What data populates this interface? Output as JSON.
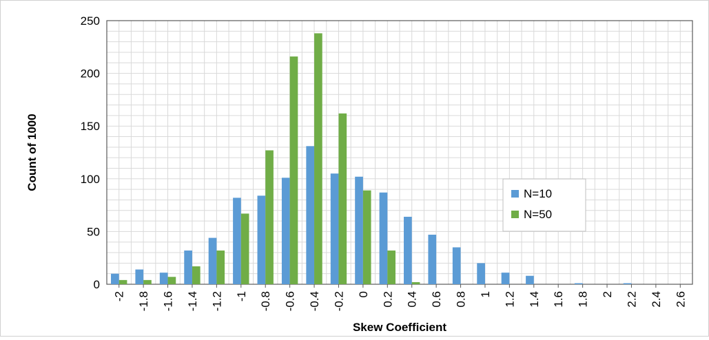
{
  "chart_data": {
    "type": "bar",
    "title": "",
    "xlabel": "Skew Coefficient",
    "ylabel": "Count of 1000",
    "ylim": [
      0,
      250
    ],
    "yticks": [
      0,
      50,
      100,
      150,
      200,
      250
    ],
    "categories": [
      "-2",
      "-1.8",
      "-1.6",
      "-1.4",
      "-1.2",
      "-1",
      "-0.8",
      "-0.6",
      "-0.4",
      "-0.2",
      "0",
      "0.2",
      "0.4",
      "0.6",
      "0.8",
      "1",
      "1.2",
      "1.4",
      "1.6",
      "1.8",
      "2",
      "2.2",
      "2.4",
      "2.6"
    ],
    "series": [
      {
        "name": "N=10",
        "color": "#5b9bd5",
        "values": [
          10,
          14,
          11,
          32,
          44,
          82,
          84,
          101,
          131,
          105,
          102,
          87,
          64,
          47,
          35,
          20,
          11,
          8,
          0,
          1,
          0,
          1,
          0,
          0
        ]
      },
      {
        "name": "N=50",
        "color": "#70ad47",
        "values": [
          4,
          4,
          7,
          17,
          32,
          67,
          127,
          216,
          238,
          162,
          89,
          32,
          2,
          0,
          0,
          0,
          0,
          0,
          0,
          0,
          0,
          0,
          0,
          0
        ]
      }
    ],
    "grid": true,
    "legend_position": "right"
  }
}
